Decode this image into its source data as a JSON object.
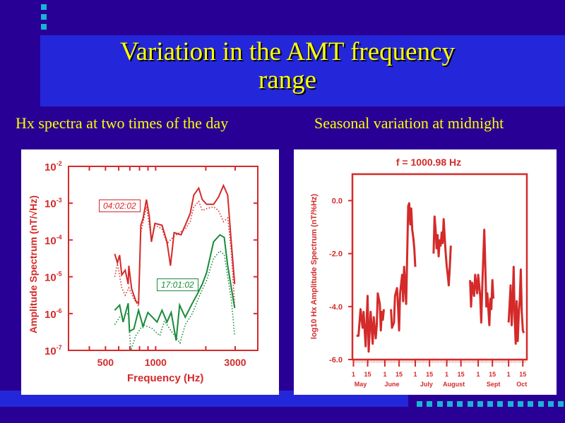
{
  "slide": {
    "title_line1": "Variation in the AMT frequency",
    "title_line2": "range",
    "subtitle_left": "Hx spectra at two times of the day",
    "subtitle_right": "Seasonal variation at midnight",
    "colors": {
      "background": "#290096",
      "band": "#2427d9",
      "title": "#ffff00",
      "accent": "#1ab4d6",
      "plot_red": "#d42a2a",
      "plot_green": "#1a8a3a"
    }
  },
  "chart_data": [
    {
      "type": "line",
      "title": "",
      "xlabel": "Frequency (Hz)",
      "ylabel": "Amplitude Spectrum (nT/√Hz)",
      "xscale": "log",
      "yscale": "log",
      "xlim": [
        300,
        4100
      ],
      "ylim_exponent": [
        -7,
        -2
      ],
      "x_ticks": [
        {
          "v": 500,
          "label": "500"
        },
        {
          "v": 1000,
          "label": "1000"
        },
        {
          "v": 3000,
          "label": "3000"
        }
      ],
      "y_ticks": [
        {
          "exp": -2,
          "label": "10",
          "sup": "-2"
        },
        {
          "exp": -3,
          "label": "10",
          "sup": "-3"
        },
        {
          "exp": -4,
          "label": "10",
          "sup": "-4"
        },
        {
          "exp": -5,
          "label": "10",
          "sup": "-5"
        },
        {
          "exp": -6,
          "label": "10",
          "sup": "-6"
        },
        {
          "exp": -7,
          "label": "10",
          "sup": "-7"
        }
      ],
      "annotations": [
        {
          "text": "04:02:02",
          "series": "red"
        },
        {
          "text": "17:01:02",
          "series": "green"
        }
      ],
      "series": [
        {
          "name": "04:02:02 solid",
          "color": "#d42a2a",
          "style": "solid",
          "points": [
            [
              568,
              -4.38
            ],
            [
              590,
              -4.62
            ],
            [
              608,
              -4.41
            ],
            [
              626,
              -4.95
            ],
            [
              657,
              -4.82
            ],
            [
              684,
              -5.2
            ],
            [
              690,
              -4.7
            ],
            [
              718,
              -5.33
            ],
            [
              761,
              -5.66
            ],
            [
              790,
              -5.72
            ],
            [
              815,
              -3.6
            ],
            [
              840,
              -3.42
            ],
            [
              881,
              -2.9
            ],
            [
              916,
              -3.36
            ],
            [
              943,
              -4.05
            ],
            [
              990,
              -3.55
            ],
            [
              1092,
              -3.6
            ],
            [
              1169,
              -4.05
            ],
            [
              1228,
              -4.7
            ],
            [
              1290,
              -3.8
            ],
            [
              1420,
              -3.86
            ],
            [
              1505,
              -3.6
            ],
            [
              1612,
              -3.28
            ],
            [
              1693,
              -2.78
            ],
            [
              1813,
              -2.59
            ],
            [
              1904,
              -2.9
            ],
            [
              2020,
              -3.03
            ],
            [
              2225,
              -3.03
            ],
            [
              2381,
              -2.84
            ],
            [
              2551,
              -2.52
            ],
            [
              2705,
              -2.78
            ],
            [
              2840,
              -4.05
            ],
            [
              2980,
              -5.2
            ]
          ]
        },
        {
          "name": "04:02:02 dotted",
          "color": "#d42a2a",
          "style": "dotted",
          "points": [
            [
              568,
              -5.0
            ],
            [
              590,
              -4.65
            ],
            [
              626,
              -5.3
            ],
            [
              657,
              -5.5
            ],
            [
              690,
              -5.3
            ],
            [
              740,
              -5.6
            ],
            [
              790,
              -5.8
            ],
            [
              815,
              -3.8
            ],
            [
              881,
              -3.1
            ],
            [
              943,
              -4.0
            ],
            [
              990,
              -3.6
            ],
            [
              1092,
              -3.7
            ],
            [
              1169,
              -4.1
            ],
            [
              1290,
              -3.9
            ],
            [
              1505,
              -3.7
            ],
            [
              1612,
              -3.5
            ],
            [
              1693,
              -3.1
            ],
            [
              1813,
              -2.95
            ],
            [
              1904,
              -3.2
            ],
            [
              2020,
              -3.15
            ],
            [
              2225,
              -3.1
            ],
            [
              2381,
              -3.2
            ],
            [
              2551,
              -3.5
            ],
            [
              2705,
              -3.4
            ],
            [
              2840,
              -4.3
            ],
            [
              2980,
              -5.8
            ]
          ]
        },
        {
          "name": "17:01:02 solid",
          "color": "#1a8a3a",
          "style": "solid",
          "points": [
            [
              568,
              -5.91
            ],
            [
              608,
              -5.77
            ],
            [
              638,
              -6.23
            ],
            [
              684,
              -5.72
            ],
            [
              697,
              -6.48
            ],
            [
              740,
              -6.42
            ],
            [
              790,
              -5.91
            ],
            [
              840,
              -6.35
            ],
            [
              898,
              -5.97
            ],
            [
              1020,
              -6.23
            ],
            [
              1092,
              -5.91
            ],
            [
              1169,
              -6.23
            ],
            [
              1240,
              -5.97
            ],
            [
              1327,
              -6.73
            ],
            [
              1392,
              -5.77
            ],
            [
              1505,
              -6.1
            ],
            [
              1660,
              -5.72
            ],
            [
              1780,
              -5.47
            ],
            [
              1904,
              -5.2
            ],
            [
              2020,
              -4.89
            ],
            [
              2225,
              -4.05
            ],
            [
              2430,
              -3.86
            ],
            [
              2580,
              -3.93
            ],
            [
              2705,
              -4.7
            ],
            [
              2980,
              -5.85
            ]
          ]
        },
        {
          "name": "17:01:02 dotted",
          "color": "#1a8a3a",
          "style": "dotted",
          "points": [
            [
              568,
              -6.3
            ],
            [
              608,
              -6.1
            ],
            [
              684,
              -6.0
            ],
            [
              710,
              -7.0
            ],
            [
              760,
              -6.6
            ],
            [
              840,
              -6.3
            ],
            [
              950,
              -6.4
            ],
            [
              1060,
              -6.6
            ],
            [
              1130,
              -6.2
            ],
            [
              1250,
              -6.5
            ],
            [
              1400,
              -6.8
            ],
            [
              1505,
              -6.3
            ],
            [
              1660,
              -6.0
            ],
            [
              1800,
              -5.6
            ],
            [
              2020,
              -5.1
            ],
            [
              2225,
              -4.5
            ],
            [
              2430,
              -4.3
            ],
            [
              2580,
              -4.4
            ],
            [
              2705,
              -5.0
            ],
            [
              2840,
              -5.6
            ],
            [
              2980,
              -6.6
            ]
          ]
        }
      ]
    },
    {
      "type": "line",
      "title": "f = 1000.98 Hz",
      "xlabel": "",
      "ylabel": "log10 Hx Amplitude Spectrum (nT/%Hz)",
      "x_unit": "days since May 1",
      "xlim": [
        -1,
        171
      ],
      "ylim": [
        -6,
        1
      ],
      "y_ticks": [
        {
          "v": 0,
          "label": "0.0"
        },
        {
          "v": -2,
          "label": "-2.0"
        },
        {
          "v": -4,
          "label": "-4.0"
        },
        {
          "v": -6,
          "label": "-6.0"
        }
      ],
      "x_ticks": [
        {
          "v": 0,
          "label": "1"
        },
        {
          "v": 14,
          "label": "15"
        },
        {
          "v": 31,
          "label": "1"
        },
        {
          "v": 45,
          "label": "15"
        },
        {
          "v": 61,
          "label": "1"
        },
        {
          "v": 75,
          "label": "15"
        },
        {
          "v": 92,
          "label": "1"
        },
        {
          "v": 106,
          "label": "15"
        },
        {
          "v": 123,
          "label": "1"
        },
        {
          "v": 137,
          "label": "15"
        },
        {
          "v": 153,
          "label": "1"
        },
        {
          "v": 167,
          "label": "15"
        }
      ],
      "months": [
        {
          "v": 7,
          "label": "May"
        },
        {
          "v": 38,
          "label": "June"
        },
        {
          "v": 72,
          "label": "July"
        },
        {
          "v": 99,
          "label": "August"
        },
        {
          "v": 138,
          "label": "Sept"
        },
        {
          "v": 166,
          "label": "Oct"
        }
      ],
      "series": [
        {
          "name": "May",
          "color": "#d42a2a",
          "points": [
            [
              3,
              -5.1
            ],
            [
              5,
              -5.1
            ],
            [
              7,
              -4.1
            ],
            [
              9,
              -4.8
            ],
            [
              10,
              -4.2
            ],
            [
              12,
              -5.5
            ],
            [
              14,
              -3.6
            ],
            [
              15,
              -5.7
            ],
            [
              17,
              -4.2
            ],
            [
              19,
              -5.4
            ],
            [
              20,
              -4.4
            ],
            [
              22,
              -5.2
            ],
            [
              23,
              -4.7
            ],
            [
              24,
              -3.5
            ],
            [
              26,
              -3.9
            ],
            [
              27,
              -4.9
            ],
            [
              28,
              -4.2
            ],
            [
              29,
              -4.5
            ],
            [
              30,
              -4.1
            ]
          ]
        },
        {
          "name": "June",
          "color": "#d42a2a",
          "points": [
            [
              37,
              -4.1
            ],
            [
              38,
              -4.8
            ],
            [
              40,
              -4.6
            ],
            [
              41,
              -3.6
            ],
            [
              43,
              -3.3
            ],
            [
              44,
              -4.0
            ],
            [
              45,
              -4.9
            ],
            [
              46,
              -3.5
            ],
            [
              48,
              -2.8
            ],
            [
              49,
              -3.8
            ],
            [
              50,
              -2.5
            ],
            [
              52,
              -3.9
            ],
            [
              53,
              -2.1
            ],
            [
              54,
              -0.2
            ],
            [
              55,
              -0.1
            ],
            [
              56,
              -0.9
            ],
            [
              57,
              -0.3
            ],
            [
              58,
              -1.1
            ],
            [
              59,
              -1.4
            ],
            [
              60,
              -1.8
            ],
            [
              61,
              -2.5
            ]
          ]
        },
        {
          "name": "July",
          "color": "#d42a2a",
          "points": [
            [
              79,
              -2.0
            ],
            [
              80,
              -0.6
            ],
            [
              81,
              -1.1
            ],
            [
              82,
              -1.8
            ],
            [
              83,
              -1.3
            ],
            [
              84,
              -2.1
            ],
            [
              85,
              -1.5
            ],
            [
              86,
              -1.7
            ],
            [
              87,
              -1.2
            ],
            [
              88,
              -1.6
            ],
            [
              89,
              -0.7
            ],
            [
              90,
              -1.4
            ],
            [
              91,
              -2.0
            ],
            [
              92,
              -2.5
            ],
            [
              93,
              -2.8
            ],
            [
              94,
              -3.2
            ],
            [
              95,
              -2.5
            ],
            [
              96,
              -1.7
            ]
          ]
        },
        {
          "name": "August",
          "color": "#d42a2a",
          "points": [
            [
              115,
              -3.0
            ],
            [
              116,
              -4.0
            ],
            [
              117,
              -3.1
            ],
            [
              119,
              -3.6
            ],
            [
              120,
              -2.8
            ],
            [
              122,
              -3.5
            ],
            [
              123,
              -2.8
            ],
            [
              125,
              -3.6
            ],
            [
              126,
              -4.6
            ],
            [
              127,
              -3.3
            ],
            [
              129,
              -1.1
            ],
            [
              130,
              -2.4
            ],
            [
              131,
              -4.0
            ],
            [
              132,
              -3.5
            ],
            [
              134,
              -4.7
            ],
            [
              135,
              -3.7
            ],
            [
              136,
              -4.1
            ],
            [
              137,
              -3.0
            ],
            [
              138,
              -3.7
            ]
          ]
        },
        {
          "name": "September",
          "color": "#d42a2a",
          "points": [
            [
              153,
              -4.6
            ],
            [
              154,
              -3.9
            ],
            [
              155,
              -3.2
            ],
            [
              156,
              -4.7
            ],
            [
              157,
              -3.9
            ],
            [
              158,
              -2.5
            ],
            [
              159,
              -4.5
            ],
            [
              160,
              -5.4
            ],
            [
              161,
              -3.8
            ],
            [
              162,
              -5.3
            ],
            [
              163,
              -4.3
            ],
            [
              164,
              -3.8
            ],
            [
              165,
              -2.6
            ],
            [
              166,
              -4.2
            ],
            [
              167,
              -4.9
            ],
            [
              168,
              -5.0
            ]
          ]
        }
      ]
    }
  ]
}
